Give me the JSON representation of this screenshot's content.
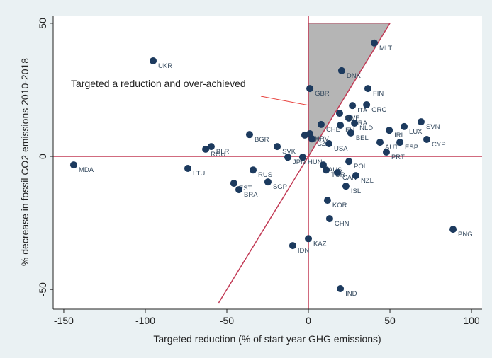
{
  "chart_data": {
    "type": "scatter",
    "x_label": "Targeted reduction (% of start year GHG emissions)",
    "y_label": "% decrease in fossil CO2 emissions 2010-2018",
    "annotation": "Targeted a reduction and over-achieved",
    "xlim": [
      -156.5,
      106.5
    ],
    "ylim": [
      -57.4,
      52.9
    ],
    "xticks": [
      -150,
      -100,
      -50,
      0,
      50,
      100
    ],
    "yticks": [
      -50,
      0,
      50
    ],
    "grid": false,
    "reference_lines": {
      "x": [
        0,
        0
      ],
      "y": [
        0,
        0
      ]
    },
    "diagonal": {
      "x": [
        -55,
        50
      ],
      "y": [
        -55,
        50
      ]
    },
    "shaded_region": {
      "x": [
        0,
        50,
        0
      ],
      "y": [
        50,
        50,
        0
      ]
    },
    "series": [
      {
        "name": "Countries",
        "color": "#1c3a5e",
        "labels": [
          "UKR",
          "MDA",
          "LTU",
          "BLR",
          "ROU",
          "BGR",
          "RUS",
          "EST",
          "BRA",
          "SGP",
          "SVK",
          "JPN",
          "HUN",
          "HRV",
          "DEU",
          "CZE",
          "GBR",
          "DNK",
          "MLT",
          "FIN",
          "ITA",
          "GRC",
          "FRA",
          "SWE",
          "NLD",
          "CHE",
          "EU",
          "BEL",
          "IRL",
          "LUX",
          "SVN",
          "CYP",
          "ESP",
          "AUT",
          "PRT",
          "USA",
          "AUS",
          "TUR",
          "CAN",
          "NZL",
          "ISL",
          "POL",
          "KOR",
          "CHN",
          "KAZ",
          "IDN",
          "IND",
          "PNG"
        ],
        "x": [
          -95.2,
          -143.9,
          -73.9,
          -59.6,
          -63.0,
          -36.1,
          -33.9,
          -45.7,
          -42.6,
          -24.8,
          -19.1,
          -12.6,
          -3.5,
          0.9,
          -2.2,
          2.2,
          0.9,
          20.4,
          40.4,
          36.5,
          27,
          35.7,
          24.8,
          19.1,
          28.3,
          7.8,
          19.6,
          26,
          49.6,
          58.7,
          69.1,
          72.6,
          56.1,
          43.9,
          47.8,
          12.6,
          9.1,
          10.9,
          17.8,
          29.1,
          23,
          24.8,
          11.7,
          13,
          0,
          -9.6,
          19.6,
          88.7
        ],
        "values": [
          35.9,
          -3.2,
          -4.5,
          3.7,
          2.7,
          8.2,
          -5.1,
          -10.1,
          -12.5,
          -9.6,
          3.7,
          -0.3,
          -0.3,
          8.5,
          8,
          6.6,
          25.5,
          32.2,
          42.6,
          25.5,
          19.1,
          19.4,
          14.4,
          16.2,
          12.5,
          12,
          11.7,
          8.8,
          9.8,
          11.2,
          13,
          6.4,
          5.3,
          5.3,
          1.6,
          4.8,
          -3.2,
          -5.1,
          -6.1,
          -7.2,
          -11.2,
          -1.9,
          -16.5,
          -23.4,
          -30.9,
          -33.5,
          -49.7,
          -27.4
        ]
      }
    ]
  }
}
